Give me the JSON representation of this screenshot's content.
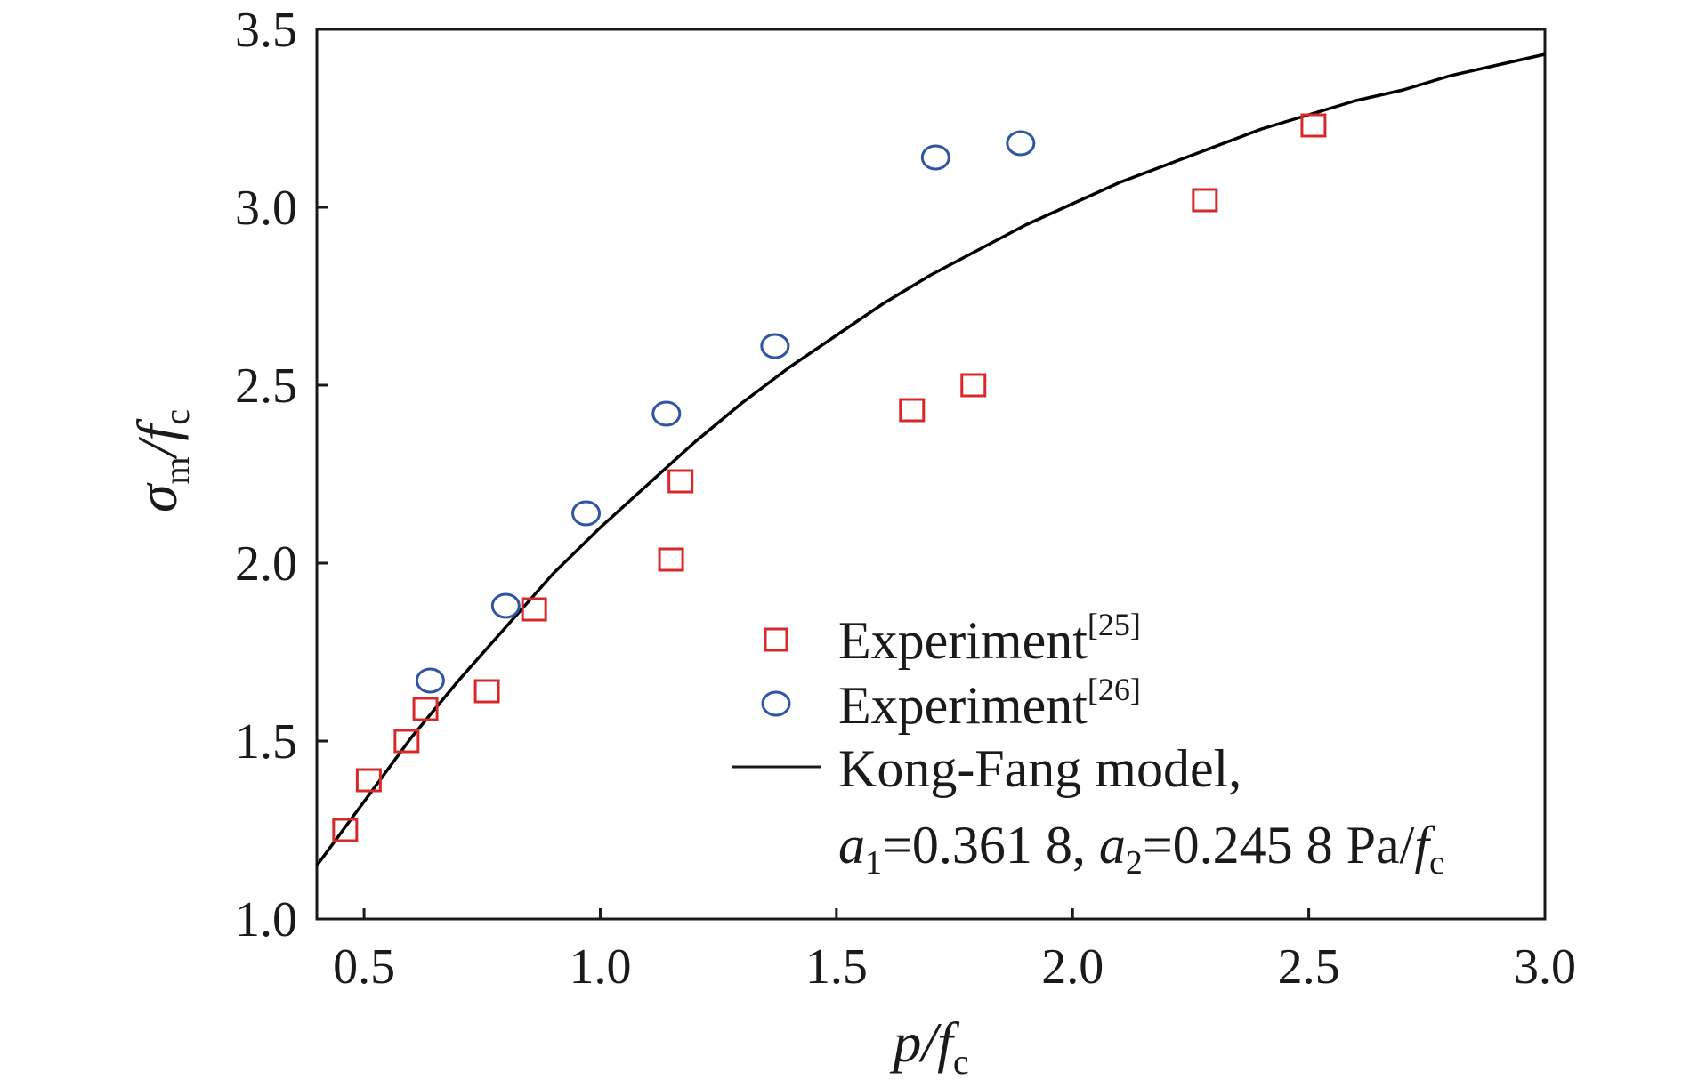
{
  "chart_data": {
    "type": "scatter",
    "xlabel": {
      "main": "p/f",
      "sub": "c"
    },
    "ylabel": {
      "main": "σ",
      "sub1": "m",
      "mid": "/f",
      "sub2": "c"
    },
    "xlim": [
      0.4,
      3.0
    ],
    "ylim": [
      1.0,
      3.5
    ],
    "xticks": [
      "0.5",
      "1.0",
      "1.5",
      "2.0",
      "2.5",
      "3.0"
    ],
    "yticks": [
      "1.0",
      "1.5",
      "2.0",
      "2.5",
      "3.0",
      "3.5"
    ],
    "grid": false,
    "legend_position": "bottom-right",
    "series": [
      {
        "kind": "scatter",
        "marker": "square",
        "color": "#d62a2a",
        "legend": {
          "text": "Experiment",
          "ref": "[25]"
        },
        "x": [
          0.46,
          0.51,
          0.59,
          0.63,
          0.76,
          0.86,
          1.15,
          1.17,
          1.66,
          1.79,
          2.28,
          2.51
        ],
        "y": [
          1.25,
          1.39,
          1.5,
          1.59,
          1.64,
          1.87,
          2.01,
          2.23,
          2.43,
          2.5,
          3.02,
          3.23
        ]
      },
      {
        "kind": "scatter",
        "marker": "circle",
        "color": "#2f55a4",
        "legend": {
          "text": "Experiment",
          "ref": "[26]"
        },
        "x": [
          0.64,
          0.8,
          0.97,
          1.14,
          1.37,
          1.71,
          1.89
        ],
        "y": [
          1.67,
          1.88,
          2.14,
          2.42,
          2.61,
          3.14,
          3.18
        ]
      },
      {
        "kind": "line",
        "color": "#000000",
        "legend": {
          "text": "Kong-Fang model,"
        },
        "x": [
          0.4,
          0.45,
          0.5,
          0.6,
          0.7,
          0.8,
          0.9,
          1.0,
          1.1,
          1.2,
          1.3,
          1.4,
          1.5,
          1.6,
          1.7,
          1.8,
          1.9,
          2.0,
          2.1,
          2.2,
          2.3,
          2.4,
          2.5,
          2.6,
          2.7,
          2.8,
          2.9,
          3.0
        ],
        "y": [
          1.15,
          1.24,
          1.33,
          1.51,
          1.67,
          1.82,
          1.97,
          2.1,
          2.22,
          2.34,
          2.45,
          2.55,
          2.64,
          2.73,
          2.81,
          2.88,
          2.95,
          3.01,
          3.07,
          3.12,
          3.17,
          3.22,
          3.26,
          3.3,
          3.33,
          3.37,
          3.4,
          3.43
        ]
      }
    ],
    "legend_params": {
      "a1_sym": "a",
      "a1_sub": "1",
      "a1_val": "=0.361 8, ",
      "a2_sym": "a",
      "a2_sub": "2",
      "a2_val": "=0.245 8 Pa/",
      "fc_sym": "f",
      "fc_sub": "c"
    }
  }
}
